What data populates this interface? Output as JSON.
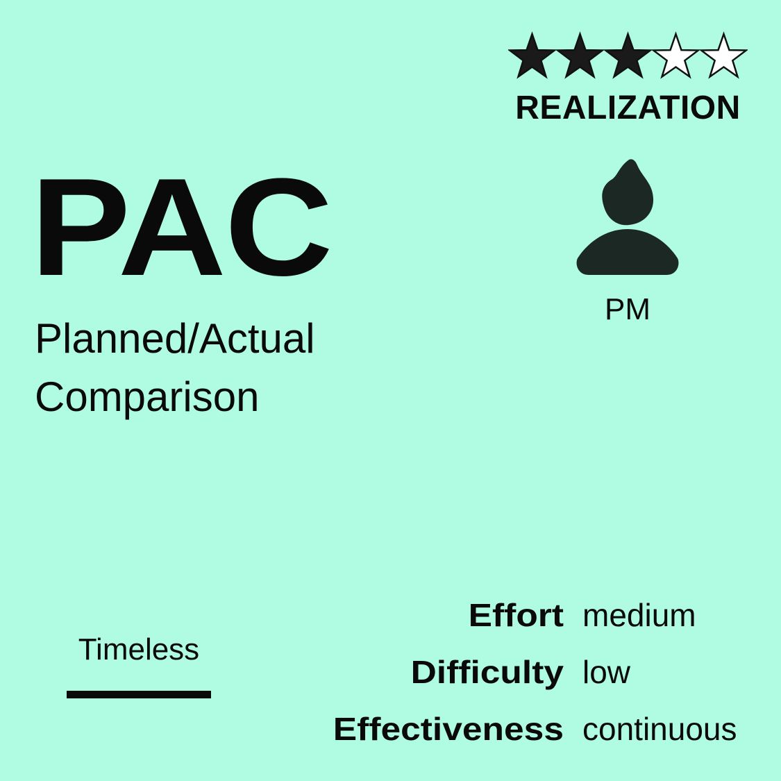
{
  "card": {
    "background": "#b0fce3",
    "rating": {
      "value": 3,
      "max": 5,
      "filled_color": "#1a1a1a",
      "empty_color": "#ffffff",
      "icon": "star-icon"
    },
    "category": "REALIZATION",
    "title": "PAC",
    "subtitle": [
      "Planned/Actual",
      "Comparison"
    ],
    "role": {
      "icon": "person-icon",
      "label": "PM",
      "color": "#1c2824"
    },
    "timeline": {
      "label": "Timeless"
    },
    "attributes": [
      {
        "key": "Effort",
        "value": "medium"
      },
      {
        "key": "Difficulty",
        "value": "low"
      },
      {
        "key": "Effectiveness",
        "value": "continuous"
      }
    ]
  }
}
